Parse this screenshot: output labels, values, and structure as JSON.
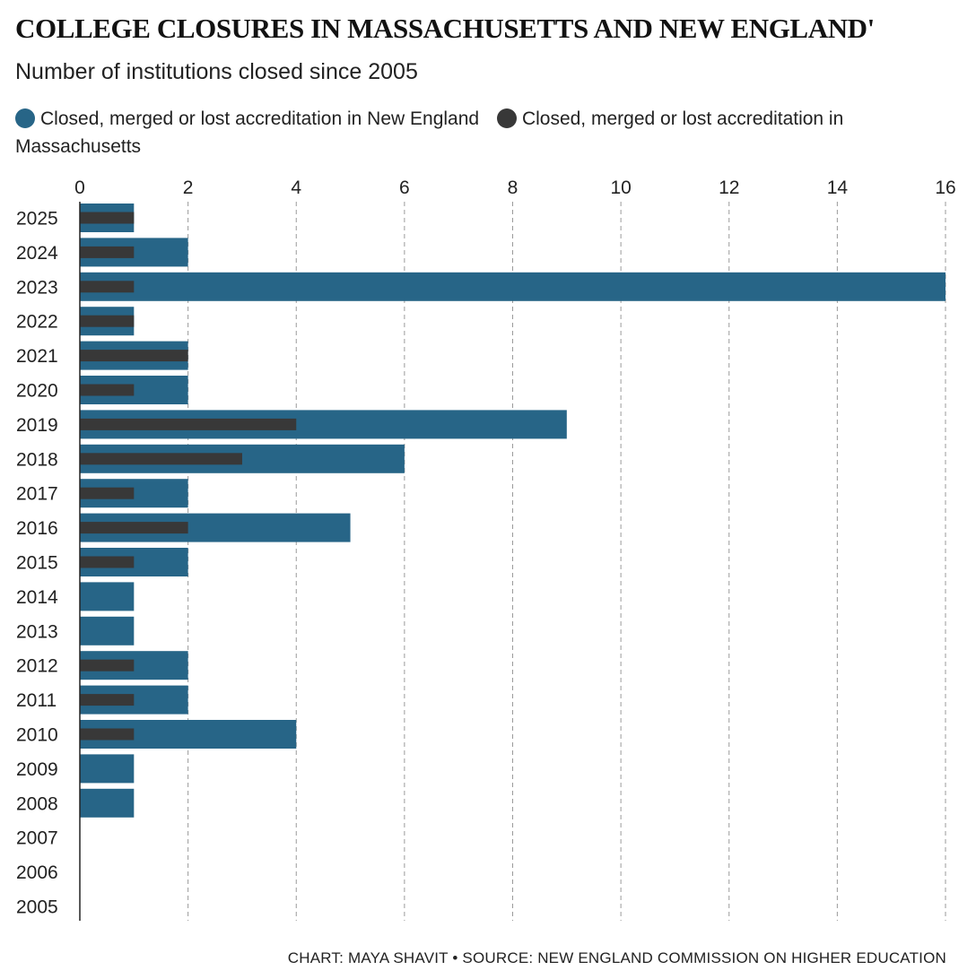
{
  "header": {
    "title": "COLLEGE CLOSURES IN MASSACHUSETTS AND NEW ENGLAND'",
    "subtitle": "Number of institutions closed since 2005"
  },
  "legend": [
    {
      "label": "Closed, merged or lost accreditation in New England",
      "color": "#276587"
    },
    {
      "label": "Closed, merged or lost accreditation in Massachusetts",
      "color": "#383838"
    }
  ],
  "footer": {
    "credit": "CHART: MAYA SHAVIT • SOURCE: NEW ENGLAND COMMISSION ON HIGHER EDUCATION"
  },
  "chart_data": {
    "type": "bar",
    "orientation": "horizontal",
    "title": "COLLEGE CLOSURES IN MASSACHUSETTS AND NEW ENGLAND'",
    "subtitle": "Number of institutions closed since 2005",
    "categories": [
      "2025",
      "2024",
      "2023",
      "2022",
      "2021",
      "2020",
      "2019",
      "2018",
      "2017",
      "2016",
      "2015",
      "2014",
      "2013",
      "2012",
      "2011",
      "2010",
      "2009",
      "2008",
      "2007",
      "2006",
      "2005"
    ],
    "series": [
      {
        "name": "Closed, merged or lost accreditation in New England",
        "color": "#276587",
        "values": [
          1,
          2,
          16,
          1,
          2,
          2,
          9,
          6,
          2,
          5,
          2,
          1,
          1,
          2,
          2,
          4,
          1,
          1,
          0,
          0,
          0
        ]
      },
      {
        "name": "Closed, merged or lost accreditation in Massachusetts",
        "color": "#383838",
        "values": [
          1,
          1,
          1,
          1,
          2,
          1,
          4,
          3,
          1,
          2,
          1,
          0,
          0,
          1,
          1,
          1,
          0,
          0,
          0,
          0,
          0
        ]
      }
    ],
    "xticks": [
      0,
      2,
      4,
      6,
      8,
      10,
      12,
      14,
      16
    ],
    "xlim": [
      0,
      16
    ],
    "grid": "vertical dashed",
    "legend_position": "top-left"
  }
}
